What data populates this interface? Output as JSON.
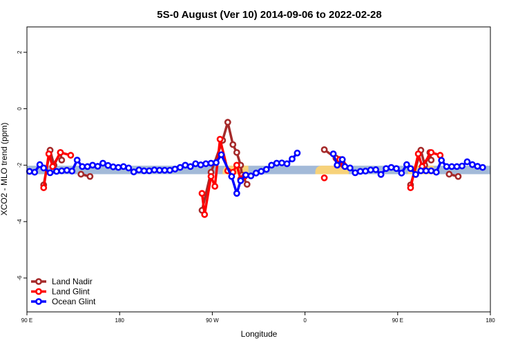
{
  "chart_data": {
    "type": "line",
    "title": "5S-0 August (Ver 10)   2014-09-06 to 2022-02-28",
    "xlabel": "Longitude",
    "ylabel": "XCO2 - MLO trend (ppm)",
    "xlim": [
      90,
      450
    ],
    "ylim": [
      -7.2,
      2.9
    ],
    "x_ticks": [
      {
        "value": 90,
        "label": "90 E"
      },
      {
        "value": 162,
        "label": "180"
      },
      {
        "value": 234,
        "label": "90 W"
      },
      {
        "value": 306,
        "label": "0"
      },
      {
        "value": 378,
        "label": "90 E"
      },
      {
        "value": 450,
        "label": "180"
      }
    ],
    "y_ticks": [
      -6,
      -4,
      -2,
      0,
      2
    ],
    "band": {
      "low": -2.32,
      "high": -2.02,
      "color": "#a3bad8",
      "highlight_color": "#f7d27a"
    },
    "highlights": [
      {
        "start": 242,
        "end": 262
      },
      {
        "start": 314,
        "end": 340
      },
      {
        "start": 386,
        "end": 406
      }
    ],
    "legend": {
      "position": "bottom-left"
    },
    "series": [
      {
        "name": "Land Nadir",
        "color": "#a52a2a",
        "points": [
          [
            103,
            -2.7
          ],
          [
            108,
            -1.47
          ],
          [
            111,
            -2.0
          ],
          [
            116,
            -1.55
          ],
          [
            117,
            -1.82
          ],
          [
            132,
            -2.32
          ],
          [
            139,
            -2.4
          ],
          [
            226,
            -3.6
          ],
          [
            233,
            -2.25
          ],
          [
            242,
            -1.12
          ],
          [
            246,
            -0.48
          ],
          [
            250,
            -1.27
          ],
          [
            253,
            -1.55
          ],
          [
            256,
            -2.0
          ],
          [
            257,
            -2.35
          ],
          [
            261,
            -2.68
          ],
          [
            321,
            -1.45
          ],
          [
            330,
            -1.75
          ],
          [
            335,
            -1.92
          ],
          [
            388,
            -2.7
          ],
          [
            396,
            -1.47
          ],
          [
            399,
            -2.0
          ],
          [
            403,
            -1.55
          ],
          [
            404,
            -1.82
          ],
          [
            418,
            -2.32
          ],
          [
            425,
            -2.4
          ]
        ]
      },
      {
        "name": "Land Glint",
        "color": "#ff0000",
        "points": [
          [
            103,
            -2.8
          ],
          [
            107,
            -1.6
          ],
          [
            110,
            -2.05
          ],
          [
            116,
            -1.55
          ],
          [
            124,
            -1.65
          ],
          [
            226,
            -3.0
          ],
          [
            228,
            -3.75
          ],
          [
            233,
            -2.4
          ],
          [
            236,
            -2.75
          ],
          [
            240,
            -1.08
          ],
          [
            246,
            -2.2
          ],
          [
            250,
            -2.25
          ],
          [
            253,
            -2.0
          ],
          [
            256,
            -2.5
          ],
          [
            259,
            -2.4
          ],
          [
            321,
            -2.45
          ],
          [
            333,
            -1.8
          ],
          [
            336,
            -2.0
          ],
          [
            388,
            -2.8
          ],
          [
            394,
            -1.6
          ],
          [
            397,
            -2.05
          ],
          [
            404,
            -1.55
          ],
          [
            411,
            -1.65
          ]
        ]
      },
      {
        "name": "Ocean Glint",
        "color": "#0000ff",
        "points": [
          [
            92,
            -2.22
          ],
          [
            96,
            -2.25
          ],
          [
            100,
            -1.98
          ],
          [
            103,
            -2.1
          ],
          [
            108,
            -2.27
          ],
          [
            113,
            -2.22
          ],
          [
            117,
            -2.2
          ],
          [
            121,
            -2.18
          ],
          [
            125,
            -2.21
          ],
          [
            129,
            -1.82
          ],
          [
            133,
            -2.05
          ],
          [
            137,
            -2.05
          ],
          [
            141,
            -2.0
          ],
          [
            145,
            -2.04
          ],
          [
            149,
            -1.93
          ],
          [
            153,
            -2.01
          ],
          [
            157,
            -2.06
          ],
          [
            161,
            -2.08
          ],
          [
            165,
            -2.05
          ],
          [
            169,
            -2.1
          ],
          [
            173,
            -2.24
          ],
          [
            177,
            -2.17
          ],
          [
            181,
            -2.2
          ],
          [
            185,
            -2.2
          ],
          [
            189,
            -2.17
          ],
          [
            193,
            -2.18
          ],
          [
            197,
            -2.18
          ],
          [
            201,
            -2.18
          ],
          [
            205,
            -2.14
          ],
          [
            209,
            -2.08
          ],
          [
            213,
            -2.0
          ],
          [
            217,
            -2.05
          ],
          [
            221,
            -1.95
          ],
          [
            225,
            -1.99
          ],
          [
            229,
            -1.95
          ],
          [
            233,
            -1.93
          ],
          [
            237,
            -1.91
          ],
          [
            241,
            -1.63
          ],
          [
            249,
            -2.4
          ],
          [
            253,
            -3.0
          ],
          [
            256,
            -2.55
          ],
          [
            260,
            -2.35
          ],
          [
            264,
            -2.38
          ],
          [
            268,
            -2.28
          ],
          [
            272,
            -2.22
          ],
          [
            276,
            -2.15
          ],
          [
            280,
            -2.0
          ],
          [
            284,
            -1.93
          ],
          [
            288,
            -1.92
          ],
          [
            292,
            -1.95
          ],
          [
            296,
            -1.78
          ],
          [
            300,
            -1.57
          ],
          [
            328,
            -1.6
          ],
          [
            331,
            -2.0
          ],
          [
            335,
            -1.8
          ],
          [
            337,
            -2.05
          ],
          [
            341,
            -2.1
          ],
          [
            345,
            -2.27
          ],
          [
            349,
            -2.22
          ],
          [
            353,
            -2.21
          ],
          [
            357,
            -2.17
          ],
          [
            361,
            -2.16
          ],
          [
            365,
            -2.33
          ],
          [
            369,
            -2.12
          ],
          [
            373,
            -2.08
          ],
          [
            377,
            -2.12
          ],
          [
            381,
            -2.28
          ],
          [
            385,
            -1.98
          ],
          [
            388,
            -2.12
          ],
          [
            392,
            -2.33
          ],
          [
            396,
            -2.2
          ],
          [
            400,
            -2.2
          ],
          [
            404,
            -2.2
          ],
          [
            408,
            -2.25
          ],
          [
            412,
            -1.83
          ],
          [
            416,
            -2.05
          ],
          [
            420,
            -2.05
          ],
          [
            424,
            -2.05
          ],
          [
            428,
            -2.03
          ],
          [
            432,
            -1.88
          ],
          [
            436,
            -1.98
          ],
          [
            440,
            -2.04
          ],
          [
            444,
            -2.08
          ]
        ]
      }
    ]
  }
}
